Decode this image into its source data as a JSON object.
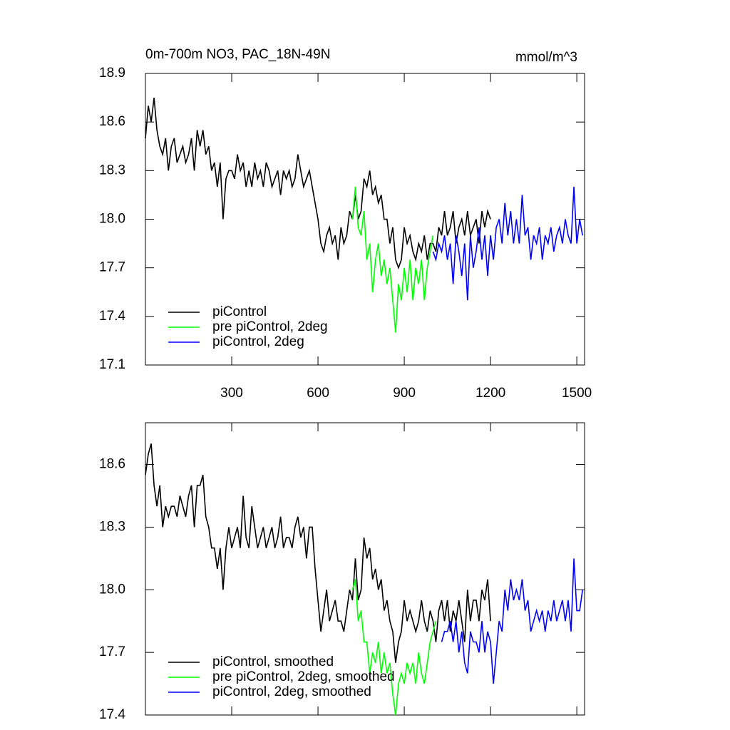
{
  "chart_data": [
    {
      "type": "line",
      "title": "0m-700m NO3, PAC_18N-49N",
      "units": "mmol/m^3",
      "legend": "lower left",
      "xlim": [
        0,
        1527
      ],
      "ylim": [
        17.1,
        18.9
      ],
      "xticks": [
        300,
        600,
        900,
        1200,
        1500
      ],
      "yticks": [
        17.1,
        17.4,
        17.7,
        {
          "value": 18,
          "label": "18.0"
        },
        18.3,
        18.6,
        18.9
      ],
      "series": [
        {
          "name": "piControl",
          "color": "#000000",
          "x": [
            0,
            10,
            20,
            30,
            40,
            50,
            60,
            70,
            80,
            90,
            100,
            110,
            120,
            130,
            140,
            150,
            160,
            170,
            180,
            190,
            200,
            210,
            220,
            230,
            240,
            250,
            260,
            270,
            280,
            290,
            300,
            310,
            320,
            330,
            340,
            350,
            360,
            370,
            380,
            390,
            400,
            410,
            420,
            430,
            440,
            450,
            460,
            470,
            480,
            490,
            500,
            510,
            520,
            530,
            540,
            550,
            560,
            570,
            580,
            590,
            600,
            610,
            620,
            630,
            640,
            650,
            660,
            670,
            680,
            690,
            700,
            710,
            720,
            730,
            740,
            750,
            760,
            770,
            780,
            790,
            800,
            810,
            820,
            830,
            840,
            850,
            860,
            870,
            880,
            890,
            900,
            910,
            920,
            930,
            940,
            950,
            960,
            970,
            980,
            990,
            1000,
            1010,
            1020,
            1030,
            1040,
            1050,
            1060,
            1070,
            1080,
            1090,
            1100,
            1110,
            1120,
            1130,
            1140,
            1150,
            1160,
            1170,
            1180,
            1190,
            1200
          ],
          "values": [
            18.5,
            18.7,
            18.6,
            18.75,
            18.55,
            18.45,
            18.4,
            18.5,
            18.3,
            18.45,
            18.5,
            18.35,
            18.4,
            18.45,
            18.35,
            18.4,
            18.5,
            18.3,
            18.55,
            18.45,
            18.55,
            18.4,
            18.45,
            18.3,
            18.35,
            18.2,
            18.35,
            18.0,
            18.25,
            18.3,
            18.3,
            18.25,
            18.4,
            18.3,
            18.35,
            18.2,
            18.3,
            18.2,
            18.35,
            18.25,
            18.3,
            18.2,
            18.35,
            18.3,
            18.2,
            18.25,
            18.3,
            18.15,
            18.3,
            18.25,
            18.3,
            18.2,
            18.25,
            18.4,
            18.3,
            18.2,
            18.25,
            18.3,
            18.2,
            18.1,
            18.0,
            17.85,
            17.8,
            17.9,
            17.95,
            17.85,
            17.9,
            17.75,
            17.95,
            17.85,
            17.9,
            18.05,
            18.0,
            18.15,
            18.0,
            18.05,
            18.25,
            18.2,
            18.3,
            18.15,
            18.2,
            18.1,
            18.15,
            18.0,
            18.0,
            17.85,
            17.95,
            17.75,
            17.7,
            17.75,
            17.95,
            17.85,
            17.9,
            17.8,
            17.75,
            17.85,
            17.8,
            17.9,
            17.75,
            17.85,
            17.85,
            17.8,
            17.95,
            17.9,
            18.05,
            17.9,
            17.95,
            18.05,
            17.85,
            17.95,
            18.0,
            17.9,
            18.05,
            17.9,
            17.95,
            18.0,
            17.85,
            18.05,
            17.95,
            18.05,
            18.0
          ]
        },
        {
          "name": "pre piControl, 2deg",
          "color": "#00ff00",
          "x": [
            720,
            730,
            740,
            750,
            760,
            770,
            780,
            790,
            800,
            810,
            820,
            830,
            840,
            850,
            860,
            870,
            880,
            890,
            900,
            910,
            920,
            930,
            940,
            950,
            960,
            970,
            980,
            990,
            1000
          ],
          "values": [
            18.0,
            18.2,
            17.95,
            17.9,
            18.05,
            17.75,
            17.85,
            17.55,
            17.75,
            17.85,
            17.65,
            17.75,
            17.6,
            17.7,
            17.5,
            17.3,
            17.6,
            17.5,
            17.7,
            17.55,
            17.75,
            17.5,
            17.7,
            17.6,
            17.75,
            17.5,
            17.7,
            17.8,
            17.9
          ]
        },
        {
          "name": "piControl, 2deg",
          "color": "#0000ff",
          "x": [
            1000,
            1010,
            1020,
            1030,
            1040,
            1050,
            1060,
            1070,
            1080,
            1090,
            1100,
            1110,
            1120,
            1130,
            1140,
            1150,
            1160,
            1170,
            1180,
            1190,
            1200,
            1210,
            1220,
            1230,
            1240,
            1250,
            1260,
            1270,
            1280,
            1290,
            1300,
            1310,
            1320,
            1330,
            1340,
            1350,
            1360,
            1370,
            1380,
            1390,
            1400,
            1410,
            1420,
            1430,
            1440,
            1450,
            1460,
            1470,
            1480,
            1490,
            1500,
            1510,
            1520
          ],
          "values": [
            17.8,
            17.75,
            17.85,
            17.8,
            17.9,
            17.75,
            17.85,
            17.6,
            17.9,
            17.8,
            17.65,
            17.85,
            17.5,
            17.9,
            17.7,
            17.8,
            17.95,
            17.75,
            17.9,
            17.65,
            17.9,
            17.75,
            17.95,
            18.0,
            17.85,
            18.1,
            17.9,
            18.05,
            17.85,
            18.0,
            17.85,
            18.15,
            17.9,
            17.95,
            17.75,
            17.9,
            17.85,
            17.95,
            17.75,
            17.9,
            17.85,
            17.95,
            17.8,
            17.9,
            17.95,
            17.85,
            18.0,
            17.9,
            17.85,
            18.2,
            17.85,
            18.0,
            17.9
          ]
        }
      ]
    },
    {
      "type": "line",
      "legend": "lower left",
      "xlim": [
        0,
        1527
      ],
      "ylim": [
        17.4,
        18.8
      ],
      "xticks": [
        300,
        600,
        900,
        1200,
        1500
      ],
      "yticks": [
        17.4,
        17.7,
        {
          "value": 18,
          "label": "18.0"
        },
        18.3,
        18.6
      ],
      "series": [
        {
          "name": "piControl, smoothed",
          "color": "#000000",
          "x": [
            0,
            10,
            20,
            30,
            40,
            50,
            60,
            70,
            80,
            90,
            100,
            110,
            120,
            130,
            140,
            150,
            160,
            170,
            180,
            190,
            200,
            210,
            220,
            230,
            240,
            250,
            260,
            270,
            280,
            290,
            300,
            310,
            320,
            330,
            340,
            350,
            360,
            370,
            380,
            390,
            400,
            410,
            420,
            430,
            440,
            450,
            460,
            470,
            480,
            490,
            500,
            510,
            520,
            530,
            540,
            550,
            560,
            570,
            580,
            590,
            600,
            610,
            620,
            630,
            640,
            650,
            660,
            670,
            680,
            690,
            700,
            710,
            720,
            730,
            740,
            750,
            760,
            770,
            780,
            790,
            800,
            810,
            820,
            830,
            840,
            850,
            860,
            870,
            880,
            890,
            900,
            910,
            920,
            930,
            940,
            950,
            960,
            970,
            980,
            990,
            1000,
            1010,
            1020,
            1030,
            1040,
            1050,
            1060,
            1070,
            1080,
            1090,
            1100,
            1110,
            1120,
            1130,
            1140,
            1150,
            1160,
            1170,
            1180,
            1190,
            1200
          ],
          "values": [
            18.55,
            18.65,
            18.7,
            18.5,
            18.4,
            18.5,
            18.3,
            18.4,
            18.35,
            18.4,
            18.4,
            18.35,
            18.45,
            18.4,
            18.35,
            18.45,
            18.5,
            18.3,
            18.5,
            18.5,
            18.55,
            18.35,
            18.3,
            18.2,
            18.2,
            18.1,
            18.2,
            18.0,
            18.2,
            18.3,
            18.2,
            18.25,
            18.3,
            18.2,
            18.45,
            18.25,
            18.2,
            18.4,
            18.3,
            18.2,
            18.25,
            18.3,
            18.2,
            18.25,
            18.3,
            18.2,
            18.25,
            18.35,
            18.2,
            18.25,
            18.25,
            18.2,
            18.3,
            18.35,
            18.25,
            18.3,
            18.15,
            18.3,
            18.3,
            18.1,
            17.95,
            17.8,
            17.9,
            18.0,
            17.85,
            17.9,
            17.95,
            17.85,
            17.85,
            17.8,
            17.9,
            18.0,
            17.95,
            18.15,
            17.95,
            18.0,
            18.25,
            18.15,
            18.2,
            18.05,
            18.1,
            18.0,
            18.05,
            17.9,
            17.95,
            17.85,
            17.8,
            17.65,
            17.75,
            17.8,
            17.95,
            17.85,
            17.9,
            17.85,
            17.8,
            17.85,
            17.95,
            17.85,
            17.8,
            17.9,
            17.85,
            17.75,
            17.9,
            17.95,
            17.85,
            17.95,
            17.8,
            17.9,
            17.85,
            17.95,
            17.85,
            17.75,
            18.0,
            17.85,
            17.95,
            17.95,
            17.85,
            18.0,
            17.95,
            18.05,
            17.85
          ]
        },
        {
          "name": "pre piControl, 2deg, smoothed",
          "color": "#00ff00",
          "x": [
            720,
            730,
            740,
            750,
            760,
            770,
            780,
            790,
            800,
            810,
            820,
            830,
            840,
            850,
            860,
            870,
            880,
            890,
            900,
            910,
            920,
            930,
            940,
            950,
            960,
            970,
            980,
            990,
            1000,
            1010
          ],
          "values": [
            18.0,
            18.05,
            17.85,
            17.9,
            17.75,
            17.75,
            17.6,
            17.7,
            17.65,
            17.75,
            17.6,
            17.7,
            17.6,
            17.65,
            17.5,
            17.4,
            17.55,
            17.6,
            17.55,
            17.65,
            17.6,
            17.65,
            17.55,
            17.7,
            17.6,
            17.55,
            17.65,
            17.75,
            17.8,
            17.85
          ]
        },
        {
          "name": "piControl, 2deg, smoothed",
          "color": "#0000ff",
          "x": [
            1030,
            1040,
            1050,
            1060,
            1070,
            1080,
            1090,
            1100,
            1110,
            1120,
            1130,
            1140,
            1150,
            1160,
            1170,
            1180,
            1190,
            1200,
            1210,
            1220,
            1230,
            1240,
            1250,
            1260,
            1270,
            1280,
            1290,
            1300,
            1310,
            1320,
            1330,
            1340,
            1350,
            1360,
            1370,
            1380,
            1390,
            1400,
            1410,
            1420,
            1430,
            1440,
            1450,
            1460,
            1470,
            1480,
            1490,
            1500,
            1510,
            1520
          ],
          "values": [
            17.75,
            17.8,
            17.8,
            17.85,
            17.75,
            17.85,
            17.7,
            17.8,
            17.65,
            17.6,
            17.8,
            17.75,
            17.75,
            17.7,
            17.85,
            17.7,
            17.8,
            17.75,
            17.55,
            17.7,
            17.85,
            17.8,
            18.0,
            17.9,
            18.05,
            17.95,
            18.0,
            17.95,
            18.05,
            17.9,
            17.95,
            17.8,
            17.85,
            17.9,
            17.85,
            17.9,
            17.8,
            17.9,
            17.85,
            17.95,
            17.85,
            17.9,
            17.95,
            17.85,
            17.95,
            17.8,
            18.15,
            17.9,
            17.9,
            18.0
          ]
        }
      ]
    }
  ]
}
